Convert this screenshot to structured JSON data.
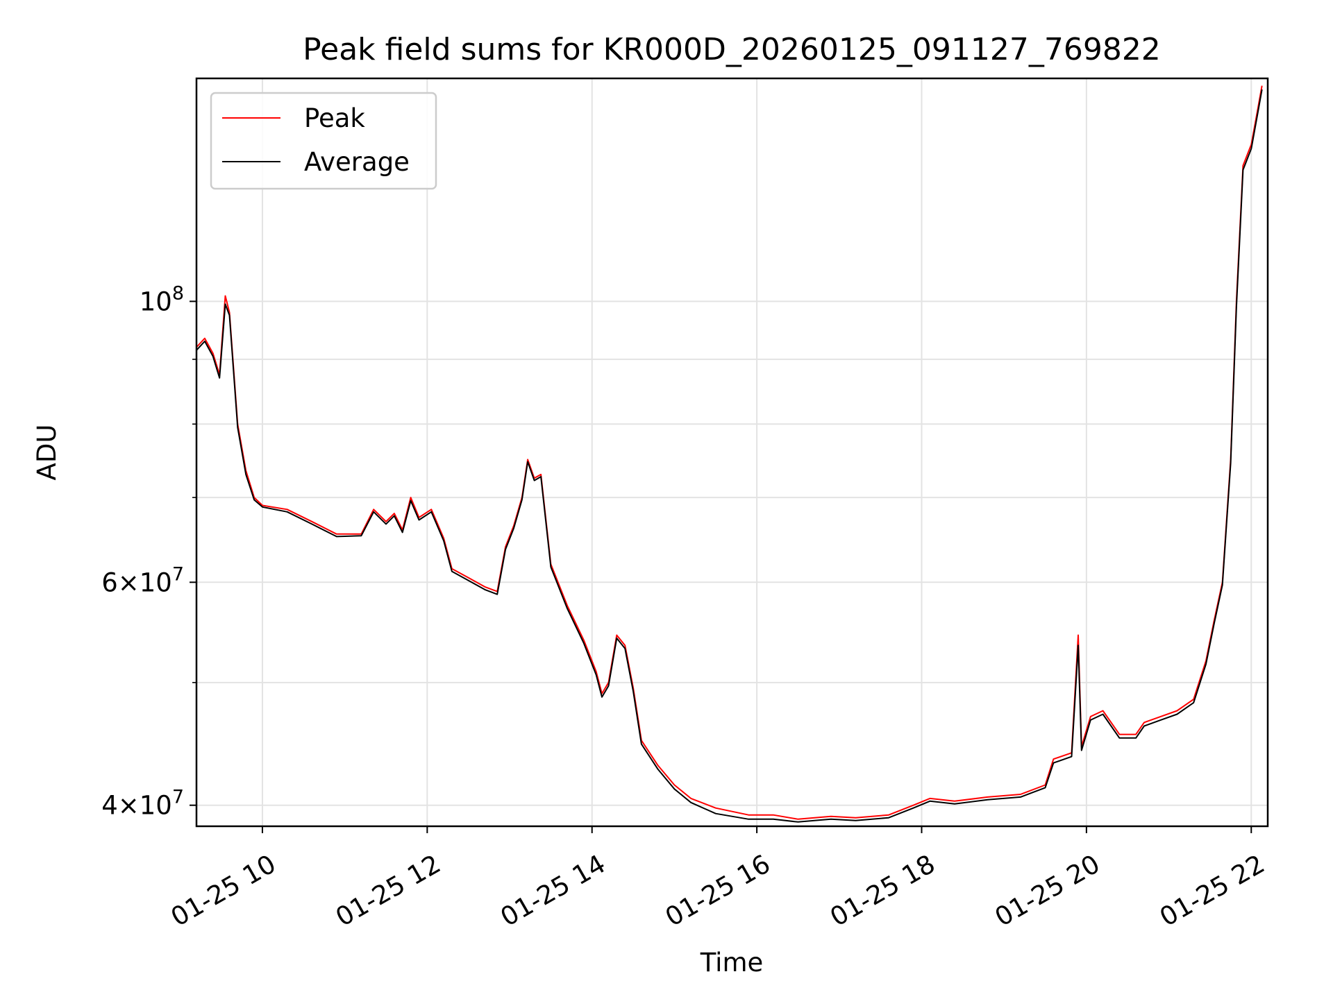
{
  "chart_data": {
    "type": "line",
    "title": "Peak field sums for KR000D_20260125_091127_769822",
    "xlabel": "Time",
    "ylabel": "ADU",
    "y_scale": "log",
    "grid": true,
    "legend_position": "top-left",
    "xlim": [
      "01-25 09:12",
      "01-25 22:12"
    ],
    "ylim": [
      38500000,
      150000000
    ],
    "x_ticks": [
      "01-25 10",
      "01-25 12",
      "01-25 14",
      "01-25 16",
      "01-25 18",
      "01-25 20",
      "01-25 22"
    ],
    "x_tick_hours": [
      10,
      12,
      14,
      16,
      18,
      20,
      22
    ],
    "y_ticks": [
      {
        "value": 100000000,
        "mantissa": "",
        "exponent": "8"
      },
      {
        "value": 60000000,
        "mantissa": "6",
        "exponent": "7"
      },
      {
        "value": 40000000,
        "mantissa": "4",
        "exponent": "7"
      }
    ],
    "y_minor_ticks": [
      50000000,
      70000000,
      80000000,
      90000000
    ],
    "series": [
      {
        "name": "Peak",
        "color": "#ff0000",
        "points": [
          [
            9.2,
            92000000
          ],
          [
            9.3,
            93500000
          ],
          [
            9.4,
            91000000
          ],
          [
            9.48,
            87500000
          ],
          [
            9.55,
            101000000
          ],
          [
            9.6,
            98000000
          ],
          [
            9.7,
            80000000
          ],
          [
            9.8,
            73500000
          ],
          [
            9.9,
            70000000
          ],
          [
            10.0,
            69000000
          ],
          [
            10.3,
            68500000
          ],
          [
            10.6,
            67000000
          ],
          [
            10.9,
            65500000
          ],
          [
            11.2,
            65500000
          ],
          [
            11.35,
            68500000
          ],
          [
            11.5,
            67000000
          ],
          [
            11.6,
            68000000
          ],
          [
            11.7,
            66000000
          ],
          [
            11.8,
            70000000
          ],
          [
            11.9,
            67500000
          ],
          [
            12.05,
            68500000
          ],
          [
            12.2,
            65000000
          ],
          [
            12.3,
            61500000
          ],
          [
            12.5,
            60500000
          ],
          [
            12.7,
            59500000
          ],
          [
            12.85,
            59000000
          ],
          [
            12.95,
            64000000
          ],
          [
            13.05,
            66500000
          ],
          [
            13.15,
            70000000
          ],
          [
            13.22,
            75000000
          ],
          [
            13.3,
            72500000
          ],
          [
            13.38,
            73000000
          ],
          [
            13.5,
            62000000
          ],
          [
            13.7,
            57500000
          ],
          [
            13.9,
            54000000
          ],
          [
            14.05,
            51000000
          ],
          [
            14.12,
            49000000
          ],
          [
            14.2,
            50000000
          ],
          [
            14.3,
            54500000
          ],
          [
            14.4,
            53500000
          ],
          [
            14.5,
            49500000
          ],
          [
            14.6,
            45000000
          ],
          [
            14.8,
            43000000
          ],
          [
            15.0,
            41500000
          ],
          [
            15.2,
            40500000
          ],
          [
            15.5,
            39800000
          ],
          [
            15.9,
            39300000
          ],
          [
            16.2,
            39300000
          ],
          [
            16.5,
            39000000
          ],
          [
            16.9,
            39200000
          ],
          [
            17.2,
            39100000
          ],
          [
            17.6,
            39300000
          ],
          [
            17.9,
            40000000
          ],
          [
            18.1,
            40500000
          ],
          [
            18.4,
            40300000
          ],
          [
            18.8,
            40600000
          ],
          [
            19.2,
            40800000
          ],
          [
            19.5,
            41500000
          ],
          [
            19.6,
            43500000
          ],
          [
            19.82,
            44000000
          ],
          [
            19.9,
            54500000
          ],
          [
            19.94,
            44500000
          ],
          [
            20.05,
            47000000
          ],
          [
            20.2,
            47500000
          ],
          [
            20.4,
            45500000
          ],
          [
            20.6,
            45500000
          ],
          [
            20.7,
            46500000
          ],
          [
            20.9,
            47000000
          ],
          [
            21.1,
            47500000
          ],
          [
            21.3,
            48500000
          ],
          [
            21.45,
            52000000
          ],
          [
            21.55,
            56000000
          ],
          [
            21.65,
            60000000
          ],
          [
            21.75,
            75000000
          ],
          [
            21.82,
            100000000
          ],
          [
            21.9,
            128000000
          ],
          [
            22.0,
            133000000
          ],
          [
            22.08,
            142000000
          ],
          [
            22.13,
            148000000
          ]
        ]
      },
      {
        "name": "Average",
        "color": "#000000",
        "points": [
          [
            9.2,
            91500000
          ],
          [
            9.3,
            93000000
          ],
          [
            9.4,
            90500000
          ],
          [
            9.48,
            87000000
          ],
          [
            9.55,
            99500000
          ],
          [
            9.6,
            97500000
          ],
          [
            9.7,
            79500000
          ],
          [
            9.8,
            73000000
          ],
          [
            9.9,
            69700000
          ],
          [
            10.0,
            68800000
          ],
          [
            10.3,
            68200000
          ],
          [
            10.6,
            66700000
          ],
          [
            10.9,
            65200000
          ],
          [
            11.2,
            65300000
          ],
          [
            11.35,
            68200000
          ],
          [
            11.5,
            66700000
          ],
          [
            11.6,
            67700000
          ],
          [
            11.7,
            65700000
          ],
          [
            11.8,
            69600000
          ],
          [
            11.9,
            67200000
          ],
          [
            12.05,
            68200000
          ],
          [
            12.2,
            64700000
          ],
          [
            12.3,
            61200000
          ],
          [
            12.5,
            60200000
          ],
          [
            12.7,
            59200000
          ],
          [
            12.85,
            58700000
          ],
          [
            12.95,
            63700000
          ],
          [
            13.05,
            66200000
          ],
          [
            13.15,
            69700000
          ],
          [
            13.22,
            74700000
          ],
          [
            13.3,
            72200000
          ],
          [
            13.38,
            72700000
          ],
          [
            13.5,
            61700000
          ],
          [
            13.7,
            57200000
          ],
          [
            13.9,
            53700000
          ],
          [
            14.05,
            50700000
          ],
          [
            14.12,
            48700000
          ],
          [
            14.2,
            49700000
          ],
          [
            14.3,
            54200000
          ],
          [
            14.4,
            53200000
          ],
          [
            14.5,
            49200000
          ],
          [
            14.6,
            44700000
          ],
          [
            14.8,
            42700000
          ],
          [
            15.0,
            41200000
          ],
          [
            15.2,
            40200000
          ],
          [
            15.5,
            39400000
          ],
          [
            15.9,
            39000000
          ],
          [
            16.2,
            39000000
          ],
          [
            16.5,
            38800000
          ],
          [
            16.9,
            39000000
          ],
          [
            17.2,
            38900000
          ],
          [
            17.6,
            39100000
          ],
          [
            17.9,
            39800000
          ],
          [
            18.1,
            40300000
          ],
          [
            18.4,
            40100000
          ],
          [
            18.8,
            40400000
          ],
          [
            19.2,
            40600000
          ],
          [
            19.5,
            41300000
          ],
          [
            19.6,
            43200000
          ],
          [
            19.82,
            43700000
          ],
          [
            19.9,
            53500000
          ],
          [
            19.94,
            44200000
          ],
          [
            20.05,
            46700000
          ],
          [
            20.2,
            47200000
          ],
          [
            20.4,
            45200000
          ],
          [
            20.6,
            45200000
          ],
          [
            20.7,
            46200000
          ],
          [
            20.9,
            46700000
          ],
          [
            21.1,
            47200000
          ],
          [
            21.3,
            48200000
          ],
          [
            21.45,
            51700000
          ],
          [
            21.55,
            55700000
          ],
          [
            21.65,
            59700000
          ],
          [
            21.75,
            74500000
          ],
          [
            21.82,
            99000000
          ],
          [
            21.9,
            127000000
          ],
          [
            22.0,
            132000000
          ],
          [
            22.08,
            141000000
          ],
          [
            22.13,
            147000000
          ]
        ]
      }
    ]
  }
}
